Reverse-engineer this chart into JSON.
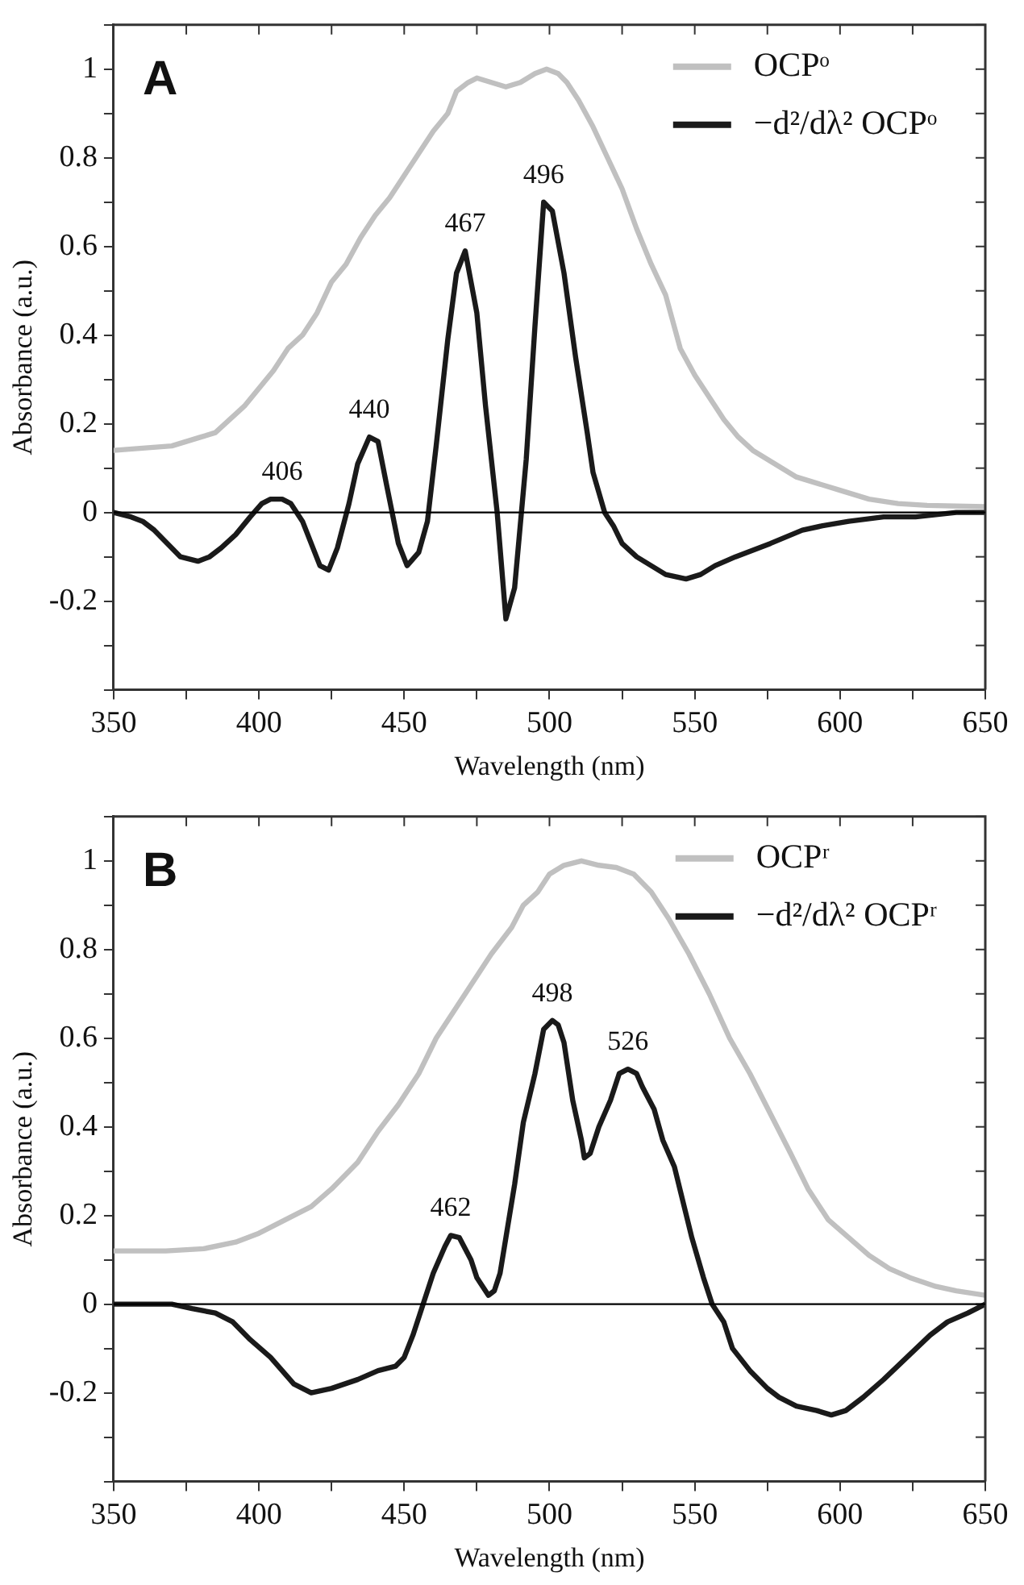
{
  "chart_data": [
    {
      "type": "line",
      "xlabel": "Wavelength (nm)",
      "ylabel": "Absorbance (a.u.)",
      "xlim": [
        350,
        650
      ],
      "ylim": [
        -0.4,
        1.1
      ],
      "xticks": [
        350,
        {
          "value": 375,
          "label": null
        },
        400,
        {
          "value": 425,
          "label": null
        },
        450,
        {
          "value": 475,
          "label": null
        },
        500,
        {
          "value": 525,
          "label": null
        },
        550,
        {
          "value": 575,
          "label": null
        },
        600,
        {
          "value": 625,
          "label": null
        },
        650
      ],
      "yticks": [
        {
          "value": -0.4,
          "label": null
        },
        {
          "value": -0.3,
          "label": null
        },
        -0.2,
        {
          "value": -0.1,
          "label": null
        },
        0,
        {
          "value": 0.1,
          "label": null
        },
        0.2,
        {
          "value": 0.3,
          "label": null
        },
        0.4,
        {
          "value": 0.5,
          "label": null
        },
        0.6,
        {
          "value": 0.7,
          "label": null
        },
        0.8,
        {
          "value": 0.9,
          "label": null
        },
        1.0,
        {
          "value": 1.1,
          "label": null
        }
      ],
      "grid": false,
      "legend": "top right",
      "marker": "none",
      "line_style": "solid",
      "ref_lines": [
        {
          "axis": "y",
          "value": 0,
          "color": "#000000"
        }
      ],
      "annotations": [
        "A",
        {
          "text": "406",
          "x": 408,
          "y": 0.03
        },
        {
          "text": "440",
          "x": 438,
          "y": 0.17
        },
        {
          "text": "467",
          "x": 471,
          "y": 0.59
        },
        {
          "text": "496",
          "x": 498,
          "y": 0.7
        }
      ],
      "series": [
        {
          "name": "OCPᵒ",
          "color": "#c0c0c0",
          "x": [
            350,
            370,
            380,
            385,
            390,
            395,
            400,
            405,
            410,
            415,
            420,
            425,
            430,
            435,
            440,
            445,
            450,
            455,
            460,
            465,
            468,
            472,
            475,
            480,
            485,
            490,
            495,
            499,
            503,
            506,
            510,
            515,
            520,
            525,
            530,
            535,
            540,
            545,
            550,
            555,
            560,
            565,
            570,
            575,
            580,
            585,
            590,
            600,
            610,
            620,
            630,
            650
          ],
          "values": [
            0.14,
            0.15,
            0.17,
            0.18,
            0.21,
            0.24,
            0.28,
            0.32,
            0.37,
            0.4,
            0.45,
            0.52,
            0.56,
            0.62,
            0.67,
            0.71,
            0.76,
            0.81,
            0.86,
            0.9,
            0.95,
            0.97,
            0.98,
            0.97,
            0.96,
            0.97,
            0.99,
            1.0,
            0.99,
            0.97,
            0.93,
            0.87,
            0.8,
            0.73,
            0.64,
            0.56,
            0.49,
            0.37,
            0.31,
            0.26,
            0.21,
            0.17,
            0.14,
            0.12,
            0.1,
            0.08,
            0.07,
            0.05,
            0.03,
            0.02,
            0.016,
            0.013
          ]
        },
        {
          "name": "−d²/dλ² OCPᵒ",
          "color": "#1a1a1a",
          "x": [
            350,
            356,
            360,
            364,
            367,
            373,
            379,
            383,
            387,
            392,
            397,
            401,
            404,
            408,
            411,
            415,
            421,
            424,
            427,
            431,
            434,
            438,
            441,
            444,
            448,
            451,
            455,
            458,
            461,
            465,
            468,
            471,
            475,
            478,
            482,
            485,
            488,
            492,
            495,
            498,
            501,
            505,
            509,
            513,
            515,
            519,
            522,
            525,
            530,
            535,
            540,
            547,
            552,
            557,
            564,
            576,
            587,
            594,
            603,
            615,
            626,
            640,
            650
          ],
          "values": [
            0.0,
            -0.01,
            -0.02,
            -0.04,
            -0.06,
            -0.1,
            -0.11,
            -0.1,
            -0.08,
            -0.05,
            -0.01,
            0.02,
            0.03,
            0.03,
            0.02,
            -0.02,
            -0.12,
            -0.13,
            -0.08,
            0.02,
            0.11,
            0.17,
            0.16,
            0.06,
            -0.07,
            -0.12,
            -0.09,
            -0.02,
            0.15,
            0.39,
            0.54,
            0.59,
            0.45,
            0.24,
            0.0,
            -0.24,
            -0.17,
            0.12,
            0.42,
            0.7,
            0.68,
            0.54,
            0.35,
            0.18,
            0.09,
            0.0,
            -0.03,
            -0.07,
            -0.1,
            -0.12,
            -0.14,
            -0.15,
            -0.14,
            -0.12,
            -0.1,
            -0.07,
            -0.04,
            -0.03,
            -0.02,
            -0.01,
            -0.01,
            0.0,
            0.0
          ]
        }
      ]
    },
    {
      "type": "line",
      "xlabel": "Wavelength (nm)",
      "ylabel": "Absorbance (a.u.)",
      "xlim": [
        350,
        650
      ],
      "ylim": [
        -0.4,
        1.1
      ],
      "xticks": [
        350,
        {
          "value": 375,
          "label": null
        },
        400,
        {
          "value": 425,
          "label": null
        },
        450,
        {
          "value": 475,
          "label": null
        },
        500,
        {
          "value": 525,
          "label": null
        },
        550,
        {
          "value": 575,
          "label": null
        },
        600,
        {
          "value": 625,
          "label": null
        },
        650
      ],
      "yticks": [
        {
          "value": -0.4,
          "label": null
        },
        {
          "value": -0.3,
          "label": null
        },
        -0.2,
        {
          "value": -0.1,
          "label": null
        },
        0,
        {
          "value": 0.1,
          "label": null
        },
        0.2,
        {
          "value": 0.3,
          "label": null
        },
        0.4,
        {
          "value": 0.5,
          "label": null
        },
        0.6,
        {
          "value": 0.7,
          "label": null
        },
        0.8,
        {
          "value": 0.9,
          "label": null
        },
        1.0,
        {
          "value": 1.1,
          "label": null
        }
      ],
      "grid": false,
      "legend": "top right",
      "marker": "none",
      "line_style": "solid",
      "ref_lines": [
        {
          "axis": "y",
          "value": 0,
          "color": "#000000"
        }
      ],
      "annotations": [
        "B",
        {
          "text": "462",
          "x": 466,
          "y": 0.155
        },
        {
          "text": "498",
          "x": 501,
          "y": 0.64
        },
        {
          "text": "526",
          "x": 527,
          "y": 0.53
        }
      ],
      "series": [
        {
          "name": "OCPʳ",
          "color": "#c0c0c0",
          "x": [
            350,
            368,
            381,
            392,
            400,
            409,
            418,
            425,
            434,
            441,
            448,
            455,
            461,
            468,
            473,
            480,
            487,
            491,
            496,
            500,
            505,
            511,
            517,
            523,
            529,
            535,
            541,
            548,
            555,
            562,
            569,
            576,
            583,
            589,
            596,
            603,
            610,
            617,
            624,
            633,
            640,
            650
          ],
          "values": [
            0.12,
            0.12,
            0.125,
            0.14,
            0.16,
            0.19,
            0.22,
            0.26,
            0.32,
            0.39,
            0.45,
            0.52,
            0.6,
            0.67,
            0.72,
            0.79,
            0.85,
            0.9,
            0.93,
            0.97,
            0.99,
            1.0,
            0.99,
            0.985,
            0.97,
            0.93,
            0.87,
            0.79,
            0.7,
            0.6,
            0.52,
            0.43,
            0.34,
            0.26,
            0.19,
            0.15,
            0.11,
            0.08,
            0.06,
            0.04,
            0.03,
            0.02
          ]
        },
        {
          "name": "−d²/dλ² OCPʳ",
          "color": "#1a1a1a",
          "x": [
            350,
            370,
            377,
            385,
            391,
            397,
            404,
            412,
            418,
            425,
            434,
            441,
            447,
            450,
            453,
            456,
            460,
            464,
            466,
            469,
            473,
            475,
            479,
            481,
            483,
            485,
            488,
            491,
            495,
            498,
            501,
            503,
            505,
            508,
            511,
            512,
            514,
            517,
            521,
            524,
            527,
            530,
            532,
            536,
            539,
            543,
            546,
            549,
            553,
            556,
            560,
            563,
            569,
            575,
            579,
            585,
            592,
            597,
            602,
            608,
            615,
            623,
            631,
            637,
            644,
            650
          ],
          "values": [
            0.0,
            0.0,
            -0.01,
            -0.02,
            -0.04,
            -0.08,
            -0.12,
            -0.18,
            -0.2,
            -0.19,
            -0.17,
            -0.15,
            -0.14,
            -0.12,
            -0.07,
            -0.01,
            0.07,
            0.13,
            0.155,
            0.15,
            0.1,
            0.06,
            0.02,
            0.03,
            0.07,
            0.15,
            0.27,
            0.41,
            0.52,
            0.62,
            0.64,
            0.63,
            0.59,
            0.46,
            0.37,
            0.33,
            0.34,
            0.4,
            0.46,
            0.52,
            0.53,
            0.52,
            0.49,
            0.44,
            0.37,
            0.31,
            0.23,
            0.15,
            0.06,
            0.0,
            -0.04,
            -0.1,
            -0.15,
            -0.19,
            -0.21,
            -0.23,
            -0.24,
            -0.25,
            -0.24,
            -0.21,
            -0.17,
            -0.12,
            -0.07,
            -0.04,
            -0.02,
            0.0
          ]
        }
      ]
    }
  ]
}
